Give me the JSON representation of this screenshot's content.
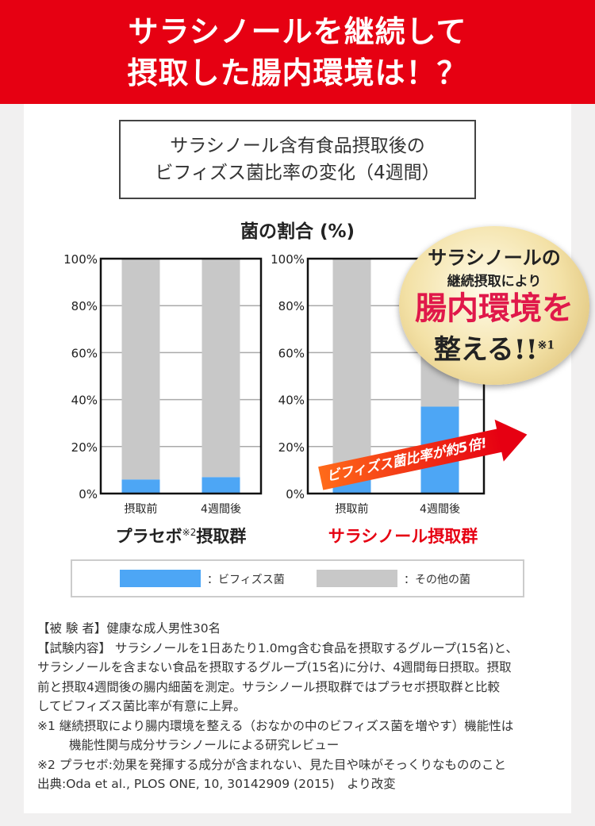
{
  "header": {
    "line1": "サラシノールを継続して",
    "line2": "摂取した腸内環境は！？"
  },
  "chart_box_title": {
    "line1": "サラシノール含有食品摂取後の",
    "line2": "ビフィズス菌比率の変化（4週間）"
  },
  "colors": {
    "bifido": "#4da6f5",
    "other": "#c8c8c8",
    "accent": "#e60012"
  },
  "chart_data": [
    {
      "type": "bar",
      "stacked": true,
      "title": "プラセボ※2摂取群",
      "ylabel": "菌の割合 (%)",
      "ylim": [
        0,
        100
      ],
      "yticks": [
        "0%",
        "20%",
        "40%",
        "60%",
        "80%",
        "100%"
      ],
      "grid": true,
      "categories": [
        "摂取前",
        "4週間後"
      ],
      "series": [
        {
          "name": "ビフィズス菌",
          "values": [
            6,
            7
          ]
        },
        {
          "name": "その他の菌",
          "values": [
            94,
            93
          ]
        }
      ]
    },
    {
      "type": "bar",
      "stacked": true,
      "title": "サラシノール摂取群",
      "ylabel": "菌の割合 (%)",
      "ylim": [
        0,
        100
      ],
      "yticks": [
        "0%",
        "20%",
        "40%",
        "60%",
        "80%",
        "100%"
      ],
      "grid": true,
      "categories": [
        "摂取前",
        "4週間後"
      ],
      "series": [
        {
          "name": "ビフィズス菌",
          "values": [
            6,
            37
          ]
        },
        {
          "name": "その他の菌",
          "values": [
            94,
            63
          ]
        }
      ]
    }
  ],
  "group_labels": {
    "placebo_main": "プラセボ",
    "placebo_sup": "※2",
    "placebo_tail": "摂取群",
    "saracinol": "サラシノール摂取群"
  },
  "arrow_text": "ビフィズス菌比率が約5倍!",
  "badge": {
    "line1": "サラシノールの",
    "line2": "継続摂取により",
    "line3": "腸内環境を",
    "line4": "整える!!",
    "note": "※1"
  },
  "legend": {
    "bifido": "：ビフィズス菌",
    "other": "：その他の菌"
  },
  "notes": [
    "【被 験 者】健康な成人男性30名",
    "【試験内容】 サラシノールを1日あたり1.0mg含む食品を摂取するグループ(15名)と、",
    "サラシノールを含まない食品を摂取するグループ(15名)に分け、4週間毎日摂取。摂取",
    "前と摂取4週間後の腸内細菌を測定。サラシノール摂取群ではプラセボ摂取群と比較",
    "してビフィズス菌比率が有意に上昇。",
    "※1 継続摂取により腸内環境を整える（おなかの中のビフィズス菌を増やす）機能性は",
    "機能性関与成分サラシノールによる研究レビュー",
    "※2 プラセボ:効果を発揮する成分が含まれない、見た目や味がそっくりなもののこと",
    "出典:Oda et al., PLOS ONE, 10, 30142909 (2015)　より改変"
  ]
}
